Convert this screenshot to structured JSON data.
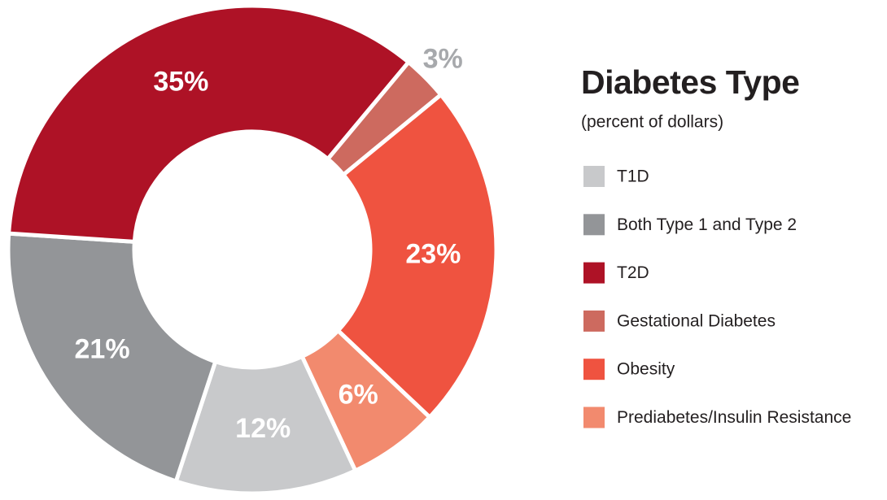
{
  "chart_data": {
    "type": "pie",
    "donut": true,
    "title": "Diabetes Type",
    "subtitle": "(percent of dollars)",
    "categories": [
      "T1D",
      "Both Type 1 and Type 2",
      "T2D",
      "Gestational Diabetes",
      "Obesity",
      "Prediabetes/Insulin Resistance"
    ],
    "values": [
      12,
      21,
      35,
      3,
      23,
      6
    ],
    "value_labels": [
      "12%",
      "21%",
      "35%",
      "3%",
      "23%",
      "6%"
    ],
    "colors": [
      "#c8c9cb",
      "#939598",
      "#ae1226",
      "#cd6a5f",
      "#ef5340",
      "#f28a6e"
    ]
  }
}
